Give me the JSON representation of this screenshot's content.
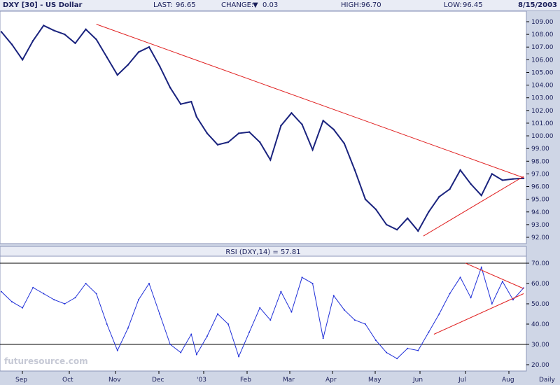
{
  "header": {
    "title": "DXY [30] - US Dollar",
    "last_label": "LAST:",
    "last_value": "96.65",
    "change_label": "CHANGE:",
    "change_icon": "down-triangle-icon",
    "change_value": "0.03",
    "high_label": "HIGH:",
    "high_value": "96.70",
    "low_label": "LOW:",
    "low_value": "96.45",
    "date": "8/15/2003"
  },
  "rsi_label": "RSI (DXY,14) = 57.81",
  "watermark": "futuresource.com",
  "colors": {
    "price": "#1a237e",
    "rsi": "#1f2fd8",
    "trendline": "#e02020",
    "background": "#ffffff",
    "frame": "#cfd6e6"
  },
  "chart_data": [
    {
      "type": "line",
      "title": "DXY [30] - US Dollar",
      "x_tick_labels": [
        "Sep",
        "Oct",
        "Nov",
        "Dec",
        "'03",
        "Feb",
        "Mar",
        "Apr",
        "May",
        "Jun",
        "Jul",
        "Aug",
        "Daily"
      ],
      "y_tick_labels": [
        "109.00",
        "108.00",
        "107.00",
        "106.00",
        "105.00",
        "104.00",
        "103.00",
        "102.00",
        "101.00",
        "100.00",
        "99.00",
        "98.00",
        "97.00",
        "96.00",
        "95.00",
        "94.00",
        "93.00",
        "92.00"
      ],
      "ylim": [
        91.5,
        109.5
      ],
      "grid": false,
      "series": [
        {
          "x": [
            2002.63,
            2002.65,
            2002.67,
            2002.69,
            2002.71,
            2002.73,
            2002.75,
            2002.77,
            2002.79,
            2002.81,
            2002.83,
            2002.85,
            2002.87,
            2002.89,
            2002.91,
            2002.93,
            2002.95,
            2002.97,
            2002.99,
            2003.0,
            2003.02,
            2003.04,
            2003.06,
            2003.08,
            2003.1,
            2003.12,
            2003.14,
            2003.16,
            2003.18,
            2003.2,
            2003.22,
            2003.24,
            2003.26,
            2003.28,
            2003.3,
            2003.32,
            2003.34,
            2003.36,
            2003.38,
            2003.4,
            2003.42,
            2003.44,
            2003.46,
            2003.48,
            2003.5,
            2003.52,
            2003.54,
            2003.56,
            2003.58,
            2003.6,
            2003.62
          ],
          "values": [
            108.2,
            107.2,
            106.0,
            107.5,
            108.7,
            108.3,
            108.0,
            107.3,
            108.4,
            107.6,
            106.2,
            104.8,
            105.6,
            106.6,
            107.0,
            105.5,
            103.8,
            102.5,
            102.7,
            101.5,
            100.2,
            99.3,
            99.5,
            100.2,
            100.3,
            99.5,
            98.1,
            100.8,
            101.8,
            100.9,
            98.9,
            101.2,
            100.5,
            99.4,
            97.3,
            95.0,
            94.2,
            93.0,
            92.6,
            93.5,
            92.5,
            94.0,
            95.2,
            95.8,
            97.3,
            96.2,
            95.3,
            97.0,
            96.5,
            96.6,
            96.65
          ]
        }
      ],
      "trendlines": [
        {
          "name": "resistance",
          "x": [
            2002.81,
            2003.62
          ],
          "values": [
            108.8,
            96.7
          ]
        },
        {
          "name": "support",
          "x": [
            2003.43,
            2003.62
          ],
          "values": [
            92.1,
            96.8
          ]
        }
      ]
    },
    {
      "type": "line",
      "title": "RSI (DXY,14) = 57.81",
      "y_tick_labels": [
        "70.00",
        "60.00",
        "50.00",
        "40.00",
        "30.00",
        "20.00"
      ],
      "ylim": [
        18,
        72
      ],
      "reference_lines": [
        70,
        30
      ],
      "series": [
        {
          "x": [
            2002.63,
            2002.65,
            2002.67,
            2002.69,
            2002.71,
            2002.73,
            2002.75,
            2002.77,
            2002.79,
            2002.81,
            2002.83,
            2002.85,
            2002.87,
            2002.89,
            2002.91,
            2002.93,
            2002.95,
            2002.97,
            2002.99,
            2003.0,
            2003.02,
            2003.04,
            2003.06,
            2003.08,
            2003.1,
            2003.12,
            2003.14,
            2003.16,
            2003.18,
            2003.2,
            2003.22,
            2003.24,
            2003.26,
            2003.28,
            2003.3,
            2003.32,
            2003.34,
            2003.36,
            2003.38,
            2003.4,
            2003.42,
            2003.44,
            2003.46,
            2003.48,
            2003.5,
            2003.52,
            2003.54,
            2003.56,
            2003.58,
            2003.6,
            2003.62
          ],
          "values": [
            56,
            51,
            48,
            58,
            55,
            52,
            50,
            53,
            60,
            55,
            40,
            27,
            38,
            52,
            60,
            45,
            30,
            26,
            35,
            25,
            34,
            45,
            40,
            24,
            36,
            48,
            42,
            56,
            46,
            63,
            60,
            33,
            54,
            47,
            42,
            40,
            32,
            26,
            23,
            28,
            27,
            36,
            45,
            55,
            63,
            53,
            68,
            50,
            61,
            52,
            57.81
          ]
        }
      ],
      "trendlines": [
        {
          "name": "resistance",
          "x": [
            2003.51,
            2003.62
          ],
          "values": [
            70,
            57.5
          ]
        },
        {
          "name": "support",
          "x": [
            2003.45,
            2003.62
          ],
          "values": [
            35,
            55
          ]
        }
      ]
    }
  ]
}
